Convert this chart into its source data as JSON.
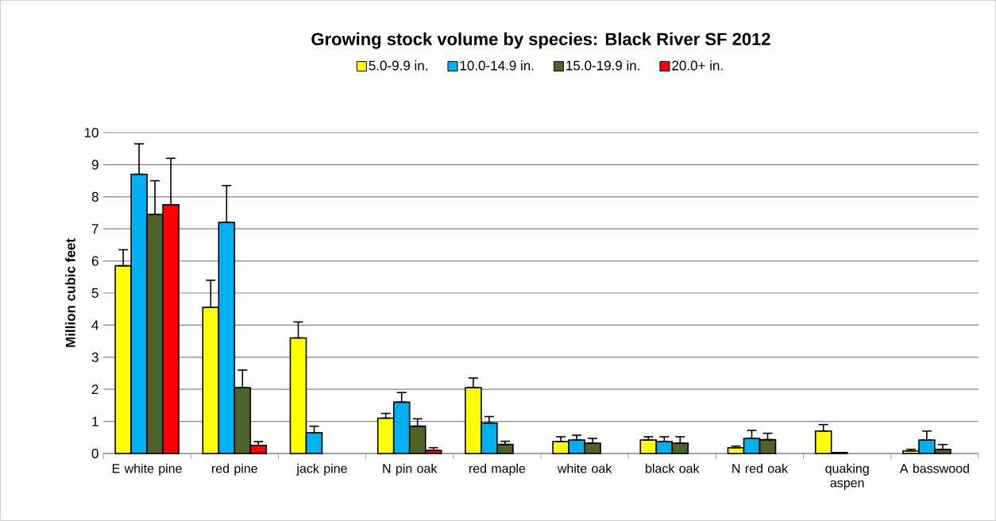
{
  "chart_data": {
    "type": "bar",
    "title": "Growing stock volume by species:  Black River SF 2012",
    "ylabel": "Million cubic feet",
    "categories": [
      "E white pine",
      "red pine",
      "jack pine",
      "N pin oak",
      "red maple",
      "white oak",
      "black oak",
      "N red oak",
      "quaking aspen",
      "A basswood"
    ],
    "series": [
      {
        "name": "5.0-9.9 in.",
        "color": "#ffff00",
        "values": [
          5.85,
          4.55,
          3.6,
          1.1,
          2.05,
          0.37,
          0.42,
          0.18,
          0.7,
          0.08
        ],
        "errors": [
          [
            5.85,
            6.35
          ],
          [
            4.55,
            5.4
          ],
          [
            3.6,
            4.1
          ],
          [
            1.1,
            1.25
          ],
          [
            2.05,
            2.35
          ],
          [
            0.37,
            0.52
          ],
          [
            0.42,
            0.52
          ],
          [
            0.18,
            0.23
          ],
          [
            0.7,
            0.9
          ],
          [
            0.08,
            0.13
          ]
        ]
      },
      {
        "name": "10.0-14.9 in.",
        "color": "#00b0f0",
        "values": [
          8.7,
          7.2,
          0.65,
          1.6,
          0.95,
          0.42,
          0.37,
          0.47,
          0.03,
          0.42
        ],
        "errors": [
          [
            8.7,
            9.65
          ],
          [
            7.2,
            8.35
          ],
          [
            0.65,
            0.85
          ],
          [
            1.6,
            1.9
          ],
          [
            0.95,
            1.15
          ],
          [
            0.42,
            0.57
          ],
          [
            0.37,
            0.52
          ],
          [
            0.47,
            0.72
          ],
          null,
          [
            0.42,
            0.7
          ]
        ]
      },
      {
        "name": "15.0-19.9 in.",
        "color": "#4f6228",
        "values": [
          7.45,
          2.05,
          null,
          0.85,
          0.28,
          0.32,
          0.32,
          0.43,
          null,
          0.13
        ],
        "errors": [
          [
            7.45,
            8.5
          ],
          [
            2.05,
            2.6
          ],
          null,
          [
            0.85,
            1.08
          ],
          [
            0.28,
            0.38
          ],
          [
            0.32,
            0.47
          ],
          [
            0.32,
            0.52
          ],
          [
            0.43,
            0.63
          ],
          null,
          [
            0.13,
            0.28
          ]
        ]
      },
      {
        "name": "20.0+ in.",
        "color": "#ff0000",
        "values": [
          7.75,
          0.25,
          null,
          0.1,
          null,
          null,
          null,
          null,
          null,
          null
        ],
        "errors": [
          [
            7.75,
            9.2
          ],
          [
            0.25,
            0.37
          ],
          null,
          [
            0.1,
            0.18
          ],
          null,
          null,
          null,
          null,
          null,
          null
        ]
      }
    ],
    "ylim": [
      0,
      10
    ],
    "yticks": [
      0,
      1,
      2,
      3,
      4,
      5,
      6,
      7,
      8,
      9,
      10
    ],
    "grid": "y",
    "legend": "top"
  }
}
